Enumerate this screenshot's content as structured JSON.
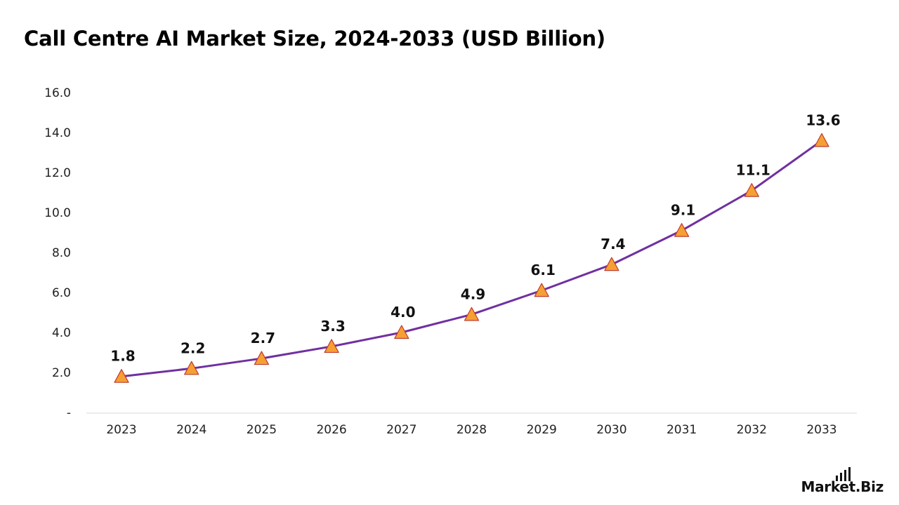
{
  "title": "Call Centre AI Market Size, 2024-2033 (USD Billion)",
  "brand": "Market.Biz",
  "colors": {
    "line": "#7030a0",
    "marker_fill": "#f5a033",
    "marker_stroke": "#c0392b",
    "axis": "#d9d9d9"
  },
  "chart_data": {
    "type": "line",
    "title": "Call Centre AI Market Size, 2024-2033 (USD Billion)",
    "xlabel": "",
    "ylabel": "",
    "categories": [
      "2023",
      "2024",
      "2025",
      "2026",
      "2027",
      "2028",
      "2029",
      "2030",
      "2031",
      "2032",
      "2033"
    ],
    "values": [
      1.8,
      2.2,
      2.7,
      3.3,
      4.0,
      4.9,
      6.1,
      7.4,
      9.1,
      11.1,
      13.6
    ],
    "data_labels": [
      "1.8",
      "2.2",
      "2.7",
      "3.3",
      "4.0",
      "4.9",
      "6.1",
      "7.4",
      "9.1",
      "11.1",
      "13.6"
    ],
    "ylim": [
      0,
      16
    ],
    "yticks": [
      0,
      2,
      4,
      6,
      8,
      10,
      12,
      14,
      16
    ],
    "ytick_labels": [
      "-",
      "2.0",
      "4.0",
      "6.0",
      "8.0",
      "10.0",
      "12.0",
      "14.0",
      "16.0"
    ],
    "marker": "triangle",
    "grid": false,
    "legend": "none"
  }
}
